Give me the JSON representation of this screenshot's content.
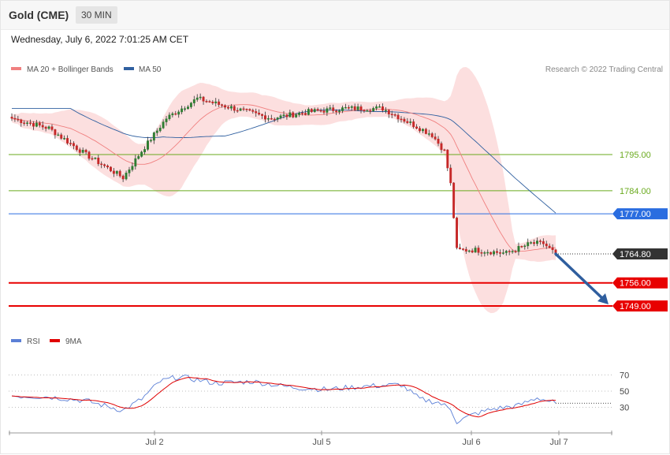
{
  "header": {
    "title": "Gold (CME)",
    "timeframe": "30 MIN",
    "datetime": "Wednesday, July 6, 2022 7:01:25 AM CET"
  },
  "legend": {
    "ma20_label": "MA 20 + Bollinger Bands",
    "ma50_label": "MA 50",
    "ma20_color": "#f08080",
    "ma50_color": "#3060a0",
    "credit": "Research © 2022 Trading Central"
  },
  "rsi_legend": {
    "rsi_label": "RSI",
    "ma_label": "9MA",
    "rsi_color": "#5b7fd6",
    "ma_color": "#e00000"
  },
  "chart_data": [
    {
      "type": "candlestick",
      "title": "Gold (CME)",
      "x_ticks": [
        "Jul 2",
        "Jul 5",
        "Jul 6",
        "Jul 7"
      ],
      "ylim": [
        1743,
        1818
      ],
      "last_price": 1764.8,
      "levels": [
        {
          "value": 1795.0,
          "label": "1795.00",
          "color": "#6aaa1e",
          "kind": "resistance"
        },
        {
          "value": 1784.0,
          "label": "1784.00",
          "color": "#6aaa1e",
          "kind": "resistance"
        },
        {
          "value": 1777.0,
          "label": "1777.00",
          "color": "#2a6de0",
          "kind": "pivot"
        },
        {
          "value": 1756.0,
          "label": "1756.00",
          "color": "#e80000",
          "kind": "support"
        },
        {
          "value": 1749.0,
          "label": "1749.00",
          "color": "#e80000",
          "kind": "support"
        }
      ],
      "last_label": "1764.80",
      "target": 1749.0,
      "key_closes": [
        {
          "bar": 0,
          "close": 1806
        },
        {
          "bar": 12,
          "close": 1803
        },
        {
          "bar": 24,
          "close": 1795
        },
        {
          "bar": 36,
          "close": 1788
        },
        {
          "bar": 42,
          "close": 1796
        },
        {
          "bar": 50,
          "close": 1806
        },
        {
          "bar": 60,
          "close": 1812
        },
        {
          "bar": 72,
          "close": 1809
        },
        {
          "bar": 84,
          "close": 1806
        },
        {
          "bar": 96,
          "close": 1808
        },
        {
          "bar": 108,
          "close": 1809
        },
        {
          "bar": 120,
          "close": 1809
        },
        {
          "bar": 128,
          "close": 1805
        },
        {
          "bar": 136,
          "close": 1801
        },
        {
          "bar": 140,
          "close": 1796
        },
        {
          "bar": 142,
          "close": 1786
        },
        {
          "bar": 144,
          "close": 1766
        },
        {
          "bar": 150,
          "close": 1766
        },
        {
          "bar": 160,
          "close": 1765
        },
        {
          "bar": 168,
          "close": 1768
        },
        {
          "bar": 172,
          "close": 1768
        },
        {
          "bar": 176,
          "close": 1764.8
        }
      ]
    },
    {
      "type": "line",
      "title": "RSI",
      "series": [
        {
          "name": "RSI"
        },
        {
          "name": "9MA"
        }
      ],
      "levels": [
        70,
        50,
        30
      ],
      "ylim": [
        0,
        100
      ],
      "x_ticks": [
        "Jul 2",
        "Jul 5",
        "Jul 6",
        "Jul 7"
      ],
      "rsi_key_values": [
        {
          "bar": 0,
          "value": 44
        },
        {
          "bar": 12,
          "value": 43
        },
        {
          "bar": 24,
          "value": 38
        },
        {
          "bar": 36,
          "value": 26
        },
        {
          "bar": 42,
          "value": 40
        },
        {
          "bar": 48,
          "value": 62
        },
        {
          "bar": 54,
          "value": 68
        },
        {
          "bar": 66,
          "value": 60
        },
        {
          "bar": 78,
          "value": 62
        },
        {
          "bar": 90,
          "value": 55
        },
        {
          "bar": 102,
          "value": 52
        },
        {
          "bar": 114,
          "value": 56
        },
        {
          "bar": 126,
          "value": 58
        },
        {
          "bar": 132,
          "value": 40
        },
        {
          "bar": 138,
          "value": 36
        },
        {
          "bar": 142,
          "value": 28
        },
        {
          "bar": 144,
          "value": 12
        },
        {
          "bar": 150,
          "value": 22
        },
        {
          "bar": 156,
          "value": 28
        },
        {
          "bar": 164,
          "value": 32
        },
        {
          "bar": 170,
          "value": 42
        },
        {
          "bar": 176,
          "value": 35
        }
      ]
    }
  ]
}
